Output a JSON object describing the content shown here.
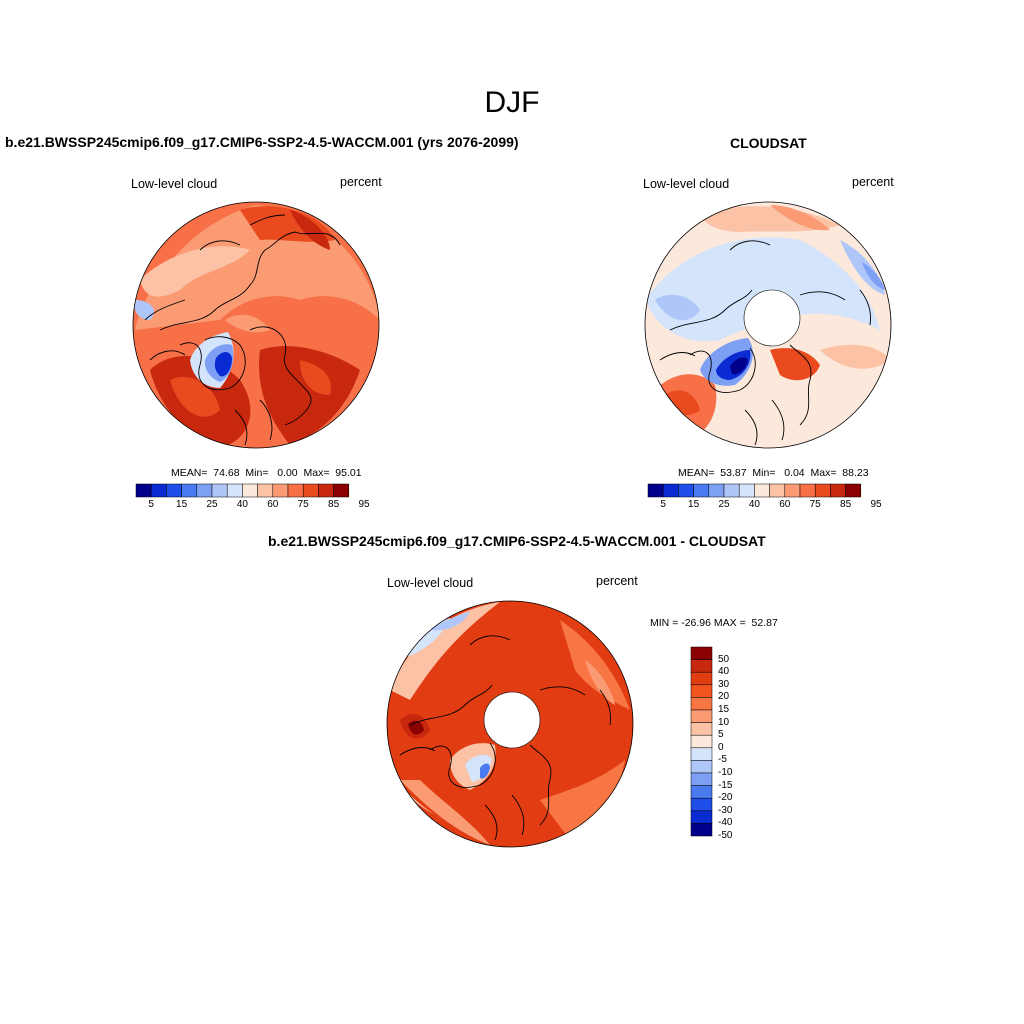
{
  "figure": {
    "season": "DJF",
    "panels": [
      {
        "id": "model",
        "title": "b.e21.BWSSP245cmip6.f09_g17.CMIP6-SSP2-4.5-WACCM.001 (yrs 2076-2099)",
        "left_label": "Low-level cloud",
        "right_label": "percent",
        "stats": "MEAN=  74.68  Min=   0.00  Max=  95.01",
        "colorbar_ticks": [
          "5",
          "15",
          "25",
          "40",
          "60",
          "75",
          "85",
          "95"
        ]
      },
      {
        "id": "obs",
        "title": "CLOUDSAT",
        "left_label": "Low-level cloud",
        "right_label": "percent",
        "stats": "MEAN=  53.87  Min=   0.04  Max=  88.23",
        "colorbar_ticks": [
          "5",
          "15",
          "25",
          "40",
          "60",
          "75",
          "85",
          "95"
        ]
      },
      {
        "id": "diff",
        "title": "b.e21.BWSSP245cmip6.f09_g17.CMIP6-SSP2-4.5-WACCM.001 - CLOUDSAT",
        "left_label": "Low-level cloud",
        "right_label": "percent",
        "stats": "MIN = -26.96 MAX =  52.87",
        "colorbar_ticks": [
          "50",
          "40",
          "30",
          "20",
          "15",
          "10",
          "5",
          "0",
          "-5",
          "-10",
          "-15",
          "-20",
          "-30",
          "-40",
          "-50"
        ]
      }
    ]
  },
  "palettes": {
    "abs": [
      "#00008b",
      "#0a2ad2",
      "#1f4fe8",
      "#4a7aef",
      "#7da0f5",
      "#aec6f8",
      "#d4e4fb",
      "#fde8dc",
      "#fcc2a6",
      "#fb9b74",
      "#f77048",
      "#e94a1e",
      "#c8280e",
      "#8b0000"
    ],
    "diff": [
      "#8b0000",
      "#c8280e",
      "#e23c12",
      "#f2541e",
      "#f87644",
      "#fb9b74",
      "#fcc2a6",
      "#fde8dc",
      "#d4e4fb",
      "#aec6f8",
      "#7da0f5",
      "#4a7aef",
      "#1f4fe8",
      "#0a2ad2",
      "#00008b"
    ]
  }
}
